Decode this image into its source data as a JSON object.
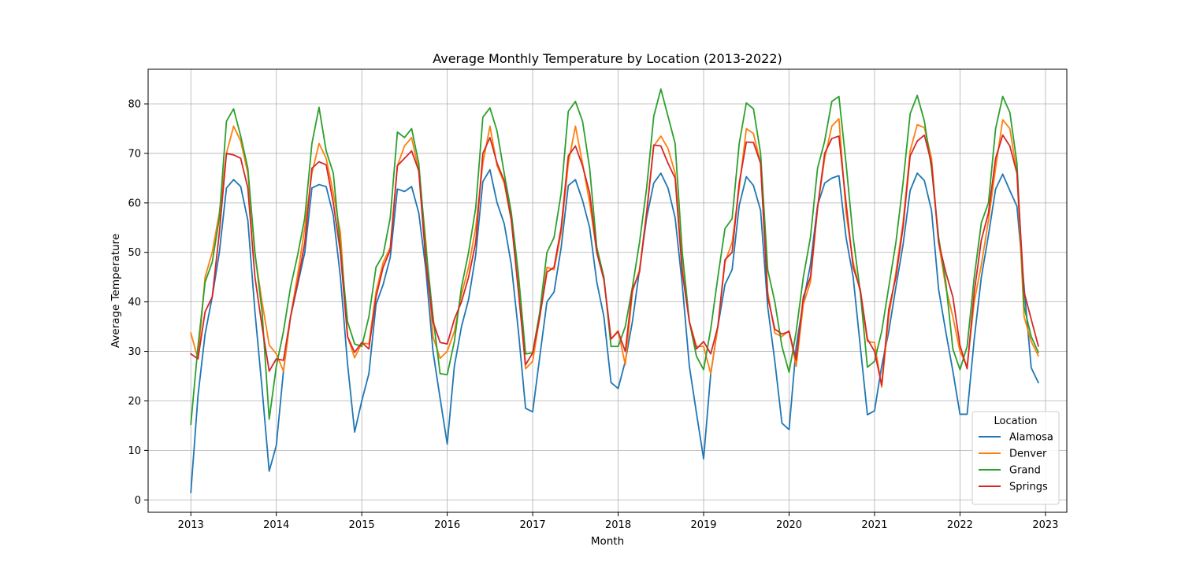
{
  "chart_data": {
    "type": "line",
    "title": "Average Monthly Temperature by Location (2013-2022)",
    "xlabel": "Month",
    "ylabel": "Average Temperature",
    "xlim": [
      2012.5,
      2023.25
    ],
    "ylim": [
      -2.5,
      87
    ],
    "x_ticks": [
      2013,
      2014,
      2015,
      2016,
      2017,
      2018,
      2019,
      2020,
      2021,
      2022,
      2023
    ],
    "y_ticks": [
      0,
      10,
      20,
      30,
      40,
      50,
      60,
      70,
      80
    ],
    "grid": true,
    "legend": {
      "title": "Location",
      "placement": "lower-right"
    },
    "x_start": 2013,
    "x_step_months": 1,
    "series": [
      {
        "name": "Alamosa",
        "color": "#1f77b4",
        "values": [
          1.5,
          21,
          33.5,
          41,
          50,
          63,
          64.7,
          63.3,
          56.5,
          38,
          22.5,
          5.8,
          11,
          26,
          37,
          43.5,
          50,
          63,
          63.7,
          63.3,
          57.5,
          45,
          27.5,
          13.7,
          20,
          25.5,
          39.5,
          43.5,
          49,
          62.8,
          62.3,
          63.3,
          58,
          46.5,
          30,
          20.5,
          11.3,
          27,
          35,
          40.5,
          49.5,
          64.3,
          66.7,
          60,
          55.8,
          47.5,
          34,
          18.5,
          17.8,
          29,
          40,
          42,
          51,
          63.5,
          64.7,
          60.5,
          55,
          44,
          37,
          23.7,
          22.5,
          28,
          36,
          46.5,
          57,
          64,
          66,
          63,
          57,
          43.5,
          27,
          17.5,
          8.3,
          25.5,
          35,
          43.5,
          46.5,
          59.5,
          65.3,
          63.5,
          58.5,
          39,
          28,
          15.5,
          14.2,
          31,
          40,
          47.5,
          59.5,
          64,
          65,
          65.5,
          53,
          45,
          31,
          17.2,
          18,
          27,
          34,
          43,
          51.5,
          62.5,
          66,
          64.5,
          58.5,
          42.5,
          34,
          26,
          17.3,
          17.3,
          32.5,
          45,
          53.5,
          62.8,
          65.8,
          62.5,
          59.3,
          43,
          26.7,
          23.7
        ]
      },
      {
        "name": "Denver",
        "color": "#ff7f0e",
        "values": [
          33.7,
          28.5,
          45,
          50,
          58,
          70,
          75.5,
          72.5,
          66,
          49.5,
          40,
          31.3,
          29.5,
          26,
          37,
          45.5,
          55,
          66,
          72,
          69,
          62,
          54,
          33,
          28.7,
          31.7,
          31.5,
          42,
          48,
          51,
          67.5,
          71.5,
          73.2,
          66.5,
          52,
          33,
          28.6,
          30,
          34,
          41.5,
          47,
          55,
          68,
          75.5,
          67.5,
          64,
          56.5,
          43,
          26.5,
          28,
          37,
          47,
          46.5,
          54,
          68,
          75.5,
          68,
          60,
          50,
          44.5,
          32.5,
          34.2,
          27.3,
          42,
          46.5,
          58,
          71.5,
          73.5,
          71,
          66,
          47,
          36,
          31,
          31,
          25.5,
          35,
          48,
          52,
          63,
          75,
          74,
          68,
          42,
          33.7,
          33,
          34.2,
          27,
          39.5,
          44,
          59,
          69,
          75.5,
          77,
          58,
          48,
          42,
          32,
          31.8,
          22.8,
          37,
          46,
          56,
          70.5,
          75.8,
          75.2,
          69,
          52,
          43,
          37,
          30,
          27,
          40,
          47.5,
          56.5,
          67,
          76.8,
          75,
          66,
          37,
          32,
          29.1
        ]
      },
      {
        "name": "Grand",
        "color": "#2ca02c",
        "values": [
          15.3,
          31,
          44,
          48,
          57,
          76.5,
          79,
          73.5,
          67,
          50,
          38,
          16.3,
          27,
          34,
          43,
          49.5,
          57,
          72,
          79.3,
          70.5,
          66,
          51,
          36,
          31.5,
          31,
          37,
          47,
          49.5,
          57,
          74.3,
          73.2,
          75,
          68,
          51,
          37,
          25.5,
          25.3,
          32,
          43,
          50,
          59,
          77.3,
          79.2,
          74.5,
          66,
          58,
          45.5,
          29.5,
          29.7,
          38,
          50,
          53,
          62,
          78.5,
          80.5,
          76.5,
          67,
          51,
          45,
          31,
          31,
          35,
          43,
          52,
          63,
          77.5,
          83,
          77.5,
          72,
          50,
          36,
          29,
          26.3,
          34.5,
          45,
          54.8,
          56.8,
          72,
          80.2,
          79,
          70,
          46.5,
          40,
          31,
          25.8,
          34,
          45,
          53,
          67,
          72.5,
          80.5,
          81.5,
          68,
          53,
          42,
          26.8,
          28,
          34,
          43,
          52,
          64,
          78,
          81.7,
          76.5,
          67,
          53,
          44,
          30.5,
          26.3,
          31,
          45,
          56,
          60,
          75,
          81.5,
          78.3,
          68,
          39,
          33,
          29.8
        ]
      },
      {
        "name": "Springs",
        "color": "#d62728",
        "values": [
          29.5,
          28.5,
          38,
          41,
          54,
          70,
          69.7,
          69,
          63,
          45,
          35,
          26,
          28.5,
          28.2,
          37,
          44,
          52,
          67,
          68.3,
          67.7,
          60,
          50,
          33,
          29.8,
          31.8,
          30.5,
          41,
          47,
          50.5,
          67.5,
          69,
          70.5,
          66.5,
          48,
          36,
          31.8,
          31.5,
          36.5,
          40,
          45,
          52,
          70,
          73.2,
          68,
          64.5,
          56.5,
          42,
          27.3,
          29.7,
          37,
          46,
          47,
          55,
          69.5,
          71.5,
          67.5,
          62,
          50,
          44.5,
          32.5,
          34,
          30,
          42.5,
          46,
          58,
          71.7,
          71.5,
          68,
          65,
          46,
          36,
          30.5,
          32,
          29.5,
          35,
          48.5,
          50,
          64,
          72.3,
          72.2,
          68,
          41,
          34.5,
          33.5,
          34,
          28.2,
          41,
          45,
          59,
          70,
          73,
          73.5,
          60,
          47,
          42.5,
          32.5,
          30,
          23.2,
          38.5,
          45,
          55,
          69.5,
          72.5,
          73.7,
          68,
          52,
          46,
          41,
          31.2,
          26.5,
          42,
          52.5,
          58,
          69,
          73.7,
          71.5,
          66,
          42,
          36.5,
          31.1
        ]
      }
    ]
  }
}
